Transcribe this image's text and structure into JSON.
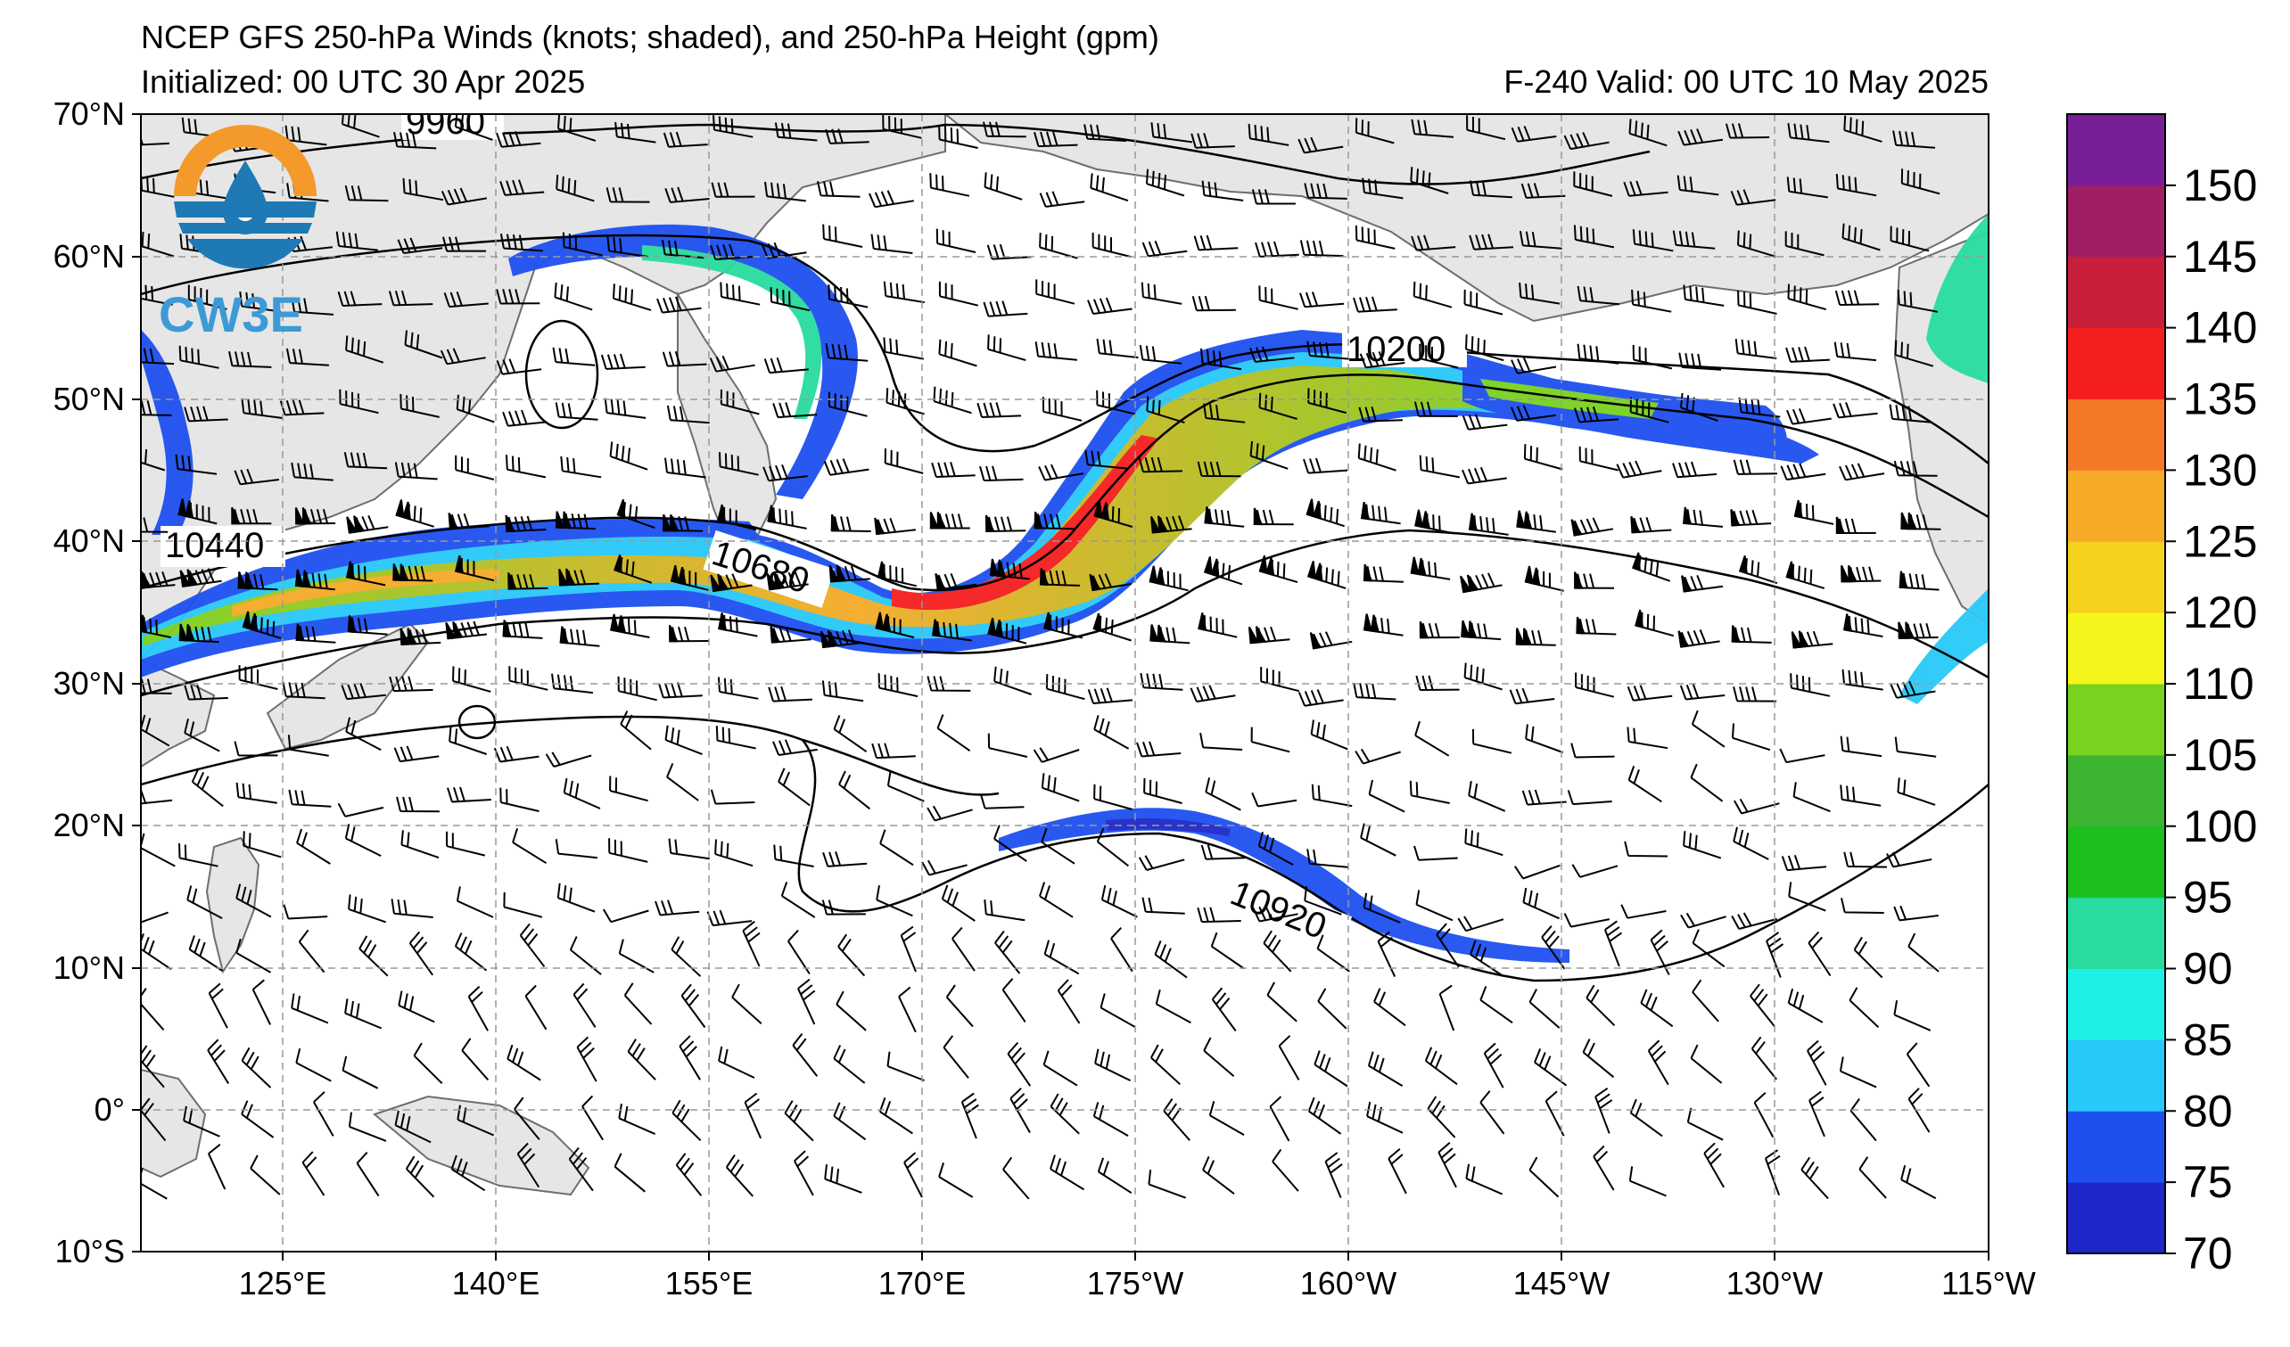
{
  "header": {
    "title": "NCEP GFS 250-hPa Winds (knots; shaded), and 250-hPa Height (gpm)",
    "init": "Initialized: 00 UTC 30 Apr 2025",
    "valid": "F-240  Valid: 00 UTC 10 May 2025"
  },
  "logo": {
    "text": "CW3E",
    "colors": {
      "orange": "#F39A2B",
      "blue": "#1E79B5"
    }
  },
  "axes": {
    "lat_labels": [
      "70°N",
      "60°N",
      "50°N",
      "40°N",
      "30°N",
      "20°N",
      "10°N",
      "0°",
      "10°S"
    ],
    "lon_labels": [
      "125°E",
      "140°E",
      "155°E",
      "170°E",
      "175°W",
      "160°W",
      "145°W",
      "130°W",
      "115°W"
    ]
  },
  "contours": {
    "labels": [
      "9960",
      "10200",
      "10440",
      "10680",
      "10920"
    ]
  },
  "colorbar": {
    "units": "knots",
    "ticks": [
      "150",
      "145",
      "140",
      "135",
      "130",
      "125",
      "120",
      "110",
      "105",
      "100",
      "95",
      "90",
      "85",
      "80",
      "75",
      "70"
    ],
    "bins": [
      {
        "min": 70,
        "color": "#1E28C8"
      },
      {
        "min": 75,
        "color": "#1E50F0"
      },
      {
        "min": 80,
        "color": "#28C8F8"
      },
      {
        "min": 85,
        "color": "#1EF0E6"
      },
      {
        "min": 90,
        "color": "#28DCA0"
      },
      {
        "min": 95,
        "color": "#1EBE1E"
      },
      {
        "min": 100,
        "color": "#3CB432"
      },
      {
        "min": 105,
        "color": "#78D21E"
      },
      {
        "min": 110,
        "color": "#F5F51E"
      },
      {
        "min": 120,
        "color": "#F5D21E"
      },
      {
        "min": 125,
        "color": "#F5AA28"
      },
      {
        "min": 130,
        "color": "#F57828"
      },
      {
        "min": 135,
        "color": "#F51E1E"
      },
      {
        "min": 140,
        "color": "#C81E3C"
      },
      {
        "min": 145,
        "color": "#A01E64"
      },
      {
        "min": 150,
        "color": "#781E96"
      }
    ]
  },
  "colors": {
    "land": "#E6E6E6",
    "coast": "#6E6E6E",
    "grid": "#999999"
  }
}
